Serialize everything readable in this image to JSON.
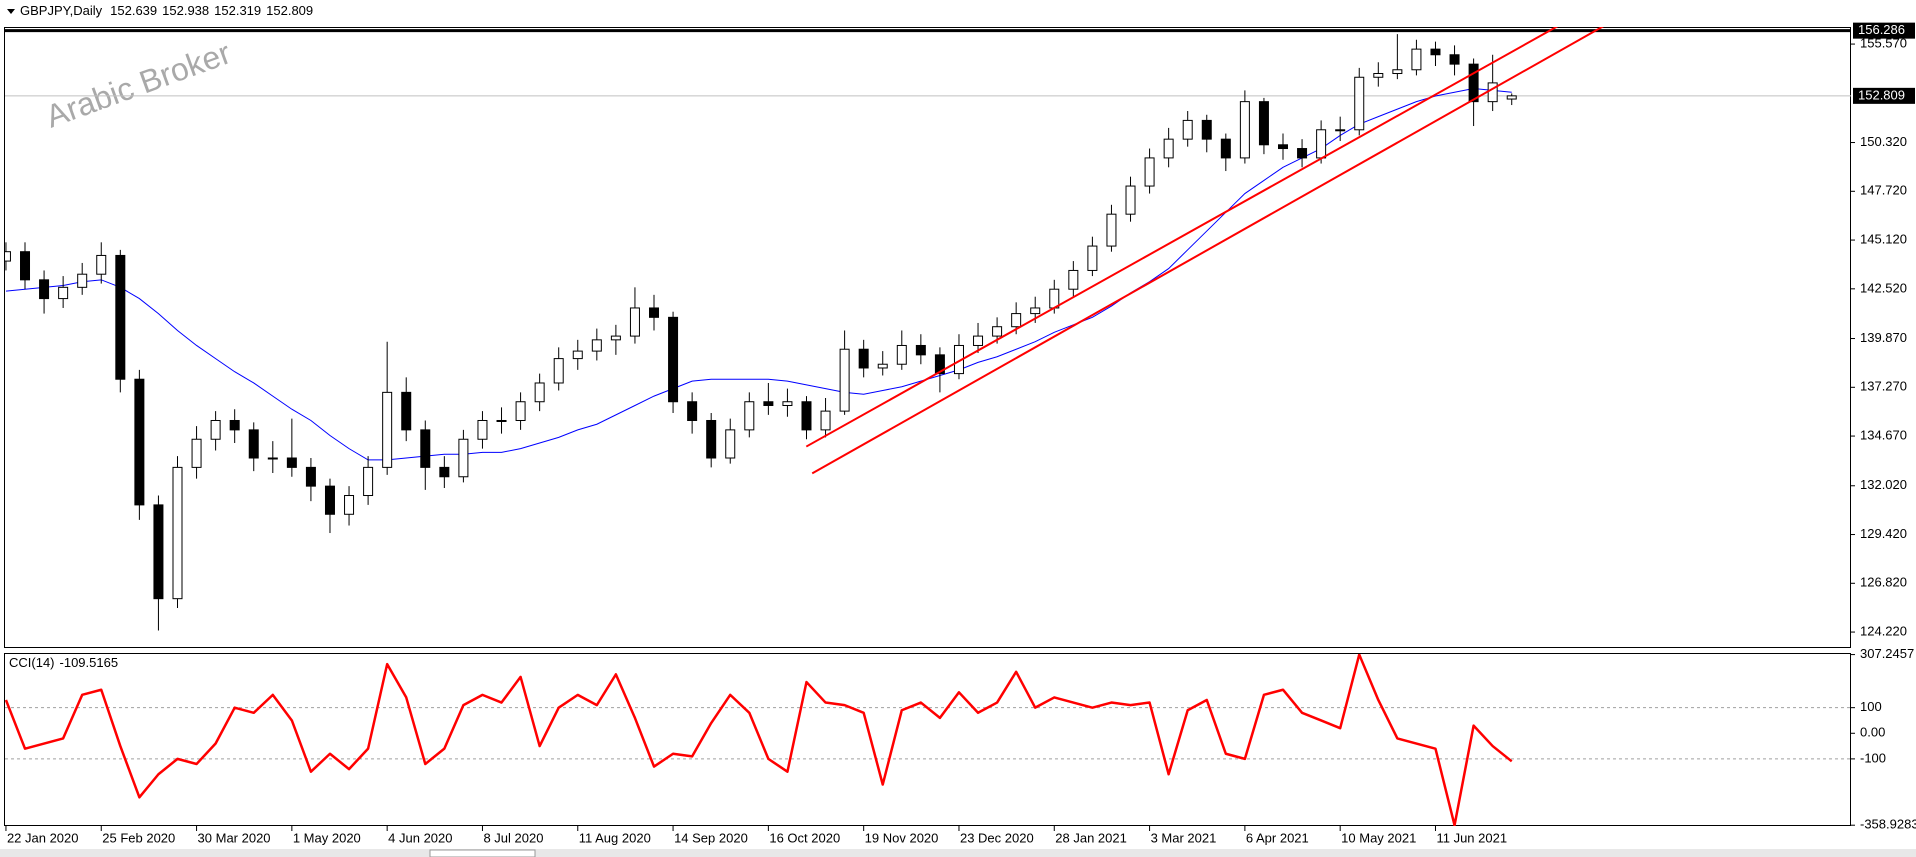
{
  "chart_data": [
    {
      "type": "candlestick",
      "symbol": "GBPJPY,Daily",
      "watermark": "Arabic Broker",
      "candles": {
        "open": [
          144.0,
          144.5,
          143.0,
          142.0,
          142.6,
          143.3,
          144.3,
          137.7,
          131.0,
          126.0,
          133.0,
          134.5,
          135.5,
          135.0,
          133.5,
          133.5,
          133.0,
          132.0,
          130.5,
          131.5,
          133.0,
          137.0,
          135.0,
          133.0,
          132.5,
          134.5,
          135.5,
          135.5,
          136.5,
          137.5,
          138.8,
          139.2,
          139.8,
          140.0,
          141.5,
          141.0,
          136.5,
          135.5,
          133.5,
          135.0,
          136.5,
          136.3,
          136.5,
          135.0,
          136.0,
          139.3,
          138.3,
          138.5,
          139.5,
          139.0,
          138.0,
          139.5,
          140.0,
          140.5,
          141.2,
          141.5,
          142.5,
          143.5,
          144.8,
          146.5,
          148.0,
          149.5,
          150.5,
          151.5,
          150.5,
          149.5,
          152.5,
          150.2,
          150.0,
          149.5,
          151.0,
          151.0,
          153.8,
          154.0,
          154.2,
          155.3,
          155.0,
          154.5,
          152.5,
          152.639
        ],
        "high": [
          145.0,
          145.0,
          143.5,
          143.2,
          143.9,
          145.0,
          144.6,
          138.2,
          131.5,
          133.6,
          135.2,
          136.0,
          136.1,
          135.4,
          134.4,
          135.6,
          133.5,
          132.4,
          132.0,
          133.6,
          139.7,
          137.8,
          135.5,
          133.6,
          135.0,
          136.0,
          136.2,
          137.0,
          138.0,
          139.4,
          139.8,
          140.4,
          140.6,
          142.6,
          142.2,
          141.3,
          137.0,
          135.9,
          135.6,
          137.0,
          137.5,
          137.2,
          136.8,
          136.7,
          140.3,
          139.8,
          139.2,
          140.3,
          140.1,
          139.4,
          140.1,
          140.7,
          141.0,
          141.8,
          142.1,
          143.0,
          144.0,
          145.3,
          147.0,
          148.5,
          150.0,
          151.1,
          152.0,
          151.8,
          150.8,
          153.1,
          152.7,
          150.8,
          150.5,
          151.5,
          151.7,
          154.3,
          154.6,
          156.1,
          155.8,
          155.7,
          155.5,
          154.8,
          155.0,
          152.938
        ],
        "low": [
          143.5,
          142.5,
          141.2,
          141.5,
          142.2,
          142.8,
          137.0,
          130.2,
          124.3,
          125.5,
          132.4,
          133.9,
          134.3,
          132.8,
          132.7,
          132.5,
          131.2,
          129.5,
          129.9,
          131.0,
          132.6,
          134.4,
          131.8,
          131.9,
          132.2,
          134.0,
          134.8,
          135.0,
          136.0,
          137.1,
          138.2,
          138.7,
          139.0,
          139.6,
          140.3,
          135.9,
          134.8,
          133.0,
          133.2,
          134.6,
          135.8,
          135.7,
          134.5,
          134.6,
          135.8,
          137.8,
          137.9,
          138.2,
          138.5,
          137.0,
          137.7,
          139.1,
          139.6,
          140.1,
          140.7,
          141.2,
          142.1,
          143.2,
          144.5,
          146.1,
          147.6,
          149.0,
          150.1,
          149.8,
          148.8,
          149.2,
          149.7,
          149.4,
          149.0,
          149.2,
          150.4,
          150.7,
          153.3,
          153.7,
          153.9,
          154.4,
          153.9,
          151.2,
          152.0,
          152.319
        ],
        "close": [
          144.5,
          143.0,
          142.0,
          142.6,
          143.3,
          144.3,
          137.7,
          131.0,
          126.0,
          133.0,
          134.5,
          135.5,
          135.0,
          133.5,
          133.5,
          133.0,
          132.0,
          130.5,
          131.5,
          133.0,
          137.0,
          135.0,
          133.0,
          132.5,
          134.5,
          135.5,
          135.5,
          136.5,
          137.5,
          138.8,
          139.2,
          139.8,
          140.0,
          141.5,
          141.0,
          136.5,
          135.5,
          133.5,
          135.0,
          136.5,
          136.3,
          136.5,
          135.0,
          136.0,
          139.3,
          138.3,
          138.5,
          139.5,
          139.0,
          138.0,
          139.5,
          140.0,
          140.5,
          141.2,
          141.5,
          142.5,
          143.5,
          144.8,
          146.5,
          148.0,
          149.5,
          150.5,
          151.5,
          150.5,
          149.5,
          152.5,
          150.2,
          150.0,
          149.5,
          151.0,
          151.0,
          153.8,
          154.0,
          154.2,
          155.3,
          155.0,
          154.5,
          152.5,
          153.5,
          152.809
        ]
      },
      "up_color": "#ffffff",
      "down_color": "#000000",
      "ma": {
        "color": "#0000ff",
        "values": [
          142.4,
          142.5,
          142.6,
          142.7,
          142.9,
          143.0,
          142.6,
          142.0,
          141.2,
          140.3,
          139.5,
          138.8,
          138.1,
          137.5,
          136.8,
          136.1,
          135.5,
          134.7,
          134.0,
          133.4,
          133.4,
          133.5,
          133.6,
          133.7,
          133.7,
          133.8,
          133.8,
          134.0,
          134.3,
          134.6,
          135.0,
          135.3,
          135.8,
          136.3,
          136.8,
          137.2,
          137.6,
          137.7,
          137.7,
          137.7,
          137.7,
          137.6,
          137.4,
          137.2,
          137.0,
          136.9,
          137.1,
          137.3,
          137.6,
          137.9,
          138.2,
          138.6,
          138.9,
          139.3,
          139.7,
          140.2,
          140.6,
          141.0,
          141.6,
          142.3,
          142.9,
          143.6,
          144.6,
          145.6,
          146.6,
          147.6,
          148.3,
          149.0,
          149.5,
          150.0,
          150.7,
          151.3,
          151.7,
          152.1,
          152.5,
          152.8,
          153.0,
          153.2,
          153.1,
          153.0
        ]
      },
      "trendlines": [
        {
          "color": "#ff0000",
          "x": [
            41.99,
            83.85
          ],
          "y": [
            134.11,
            157.91
          ]
        },
        {
          "color": "#ff0000",
          "x": [
            42.3,
            86.0
          ],
          "y": [
            132.68,
            157.78
          ]
        }
      ],
      "hlines": [
        {
          "value": 156.286,
          "color": "#000000"
        }
      ],
      "xlim": [
        -0.05,
        96.8
      ],
      "xticks": [
        {
          "value": 0,
          "label": "22 Jan 2020"
        },
        {
          "value": 5,
          "label": "25 Feb 2020"
        },
        {
          "value": 10,
          "label": "30 Mar 2020"
        },
        {
          "value": 15,
          "label": "1 May 2020"
        },
        {
          "value": 20,
          "label": "4 Jun 2020"
        },
        {
          "value": 25,
          "label": "8 Jul 2020"
        },
        {
          "value": 30,
          "label": "11 Aug 2020"
        },
        {
          "value": 35,
          "label": "14 Sep 2020"
        },
        {
          "value": 40,
          "label": "16 Oct 2020"
        },
        {
          "value": 45,
          "label": "19 Nov 2020"
        },
        {
          "value": 50,
          "label": "23 Dec 2020"
        },
        {
          "value": 55,
          "label": "28 Jan 2021"
        },
        {
          "value": 60,
          "label": "3 Mar 2021"
        },
        {
          "value": 65,
          "label": "6 Apr 2021"
        },
        {
          "value": 70,
          "label": "10 May 2021"
        },
        {
          "value": 75,
          "label": "11 Jun 2021"
        }
      ],
      "ylim": [
        123.37,
        156.48
      ],
      "yticks": [
        {
          "value": 155.57,
          "label": "155.570"
        },
        {
          "value": 150.32,
          "label": "150.320"
        },
        {
          "value": 147.72,
          "label": "147.720"
        },
        {
          "value": 145.12,
          "label": "145.120"
        },
        {
          "value": 142.52,
          "label": "142.520"
        },
        {
          "value": 139.87,
          "label": "139.870"
        },
        {
          "value": 137.27,
          "label": "137.270"
        },
        {
          "value": 134.67,
          "label": "134.670"
        },
        {
          "value": 132.02,
          "label": "132.020"
        },
        {
          "value": 129.42,
          "label": "129.420"
        },
        {
          "value": 126.82,
          "label": "126.820"
        },
        {
          "value": 124.22,
          "label": "124.220"
        }
      ]
    },
    {
      "type": "line",
      "name": "CCI(14)",
      "color": "#ff0000",
      "values": [
        130,
        -60,
        -40,
        -20,
        150,
        170,
        -50,
        -250,
        -160,
        -100,
        -120,
        -40,
        100,
        80,
        150,
        50,
        -150,
        -80,
        -140,
        -60,
        270,
        140,
        -120,
        -60,
        110,
        150,
        120,
        220,
        -50,
        100,
        150,
        110,
        230,
        60,
        -130,
        -80,
        -90,
        40,
        150,
        80,
        -100,
        -150,
        200,
        120,
        110,
        80,
        -200,
        90,
        120,
        60,
        160,
        80,
        120,
        240,
        100,
        140,
        120,
        100,
        120,
        110,
        120,
        -160,
        90,
        130,
        -80,
        -100,
        150,
        170,
        80,
        50,
        20,
        307.2457,
        130,
        -20,
        -40,
        -60,
        -358.9283,
        30,
        -50,
        -109.5165
      ],
      "xlim": [
        -0.05,
        96.8
      ],
      "ylim": [
        -362,
        309.5
      ],
      "yticks": [
        307.2457,
        100,
        {
          "value": 0,
          "label": "0.00"
        },
        -100,
        -358.9283
      ],
      "levels": [
        100,
        -100
      ]
    }
  ]
}
